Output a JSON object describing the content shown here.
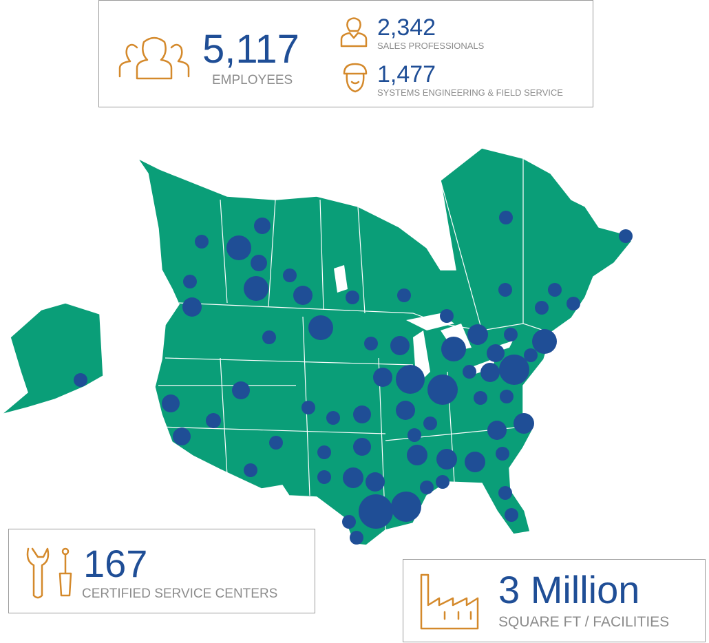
{
  "stats": {
    "employees": {
      "value": "5,117",
      "label": "EMPLOYEES"
    },
    "sales": {
      "value": "2,342",
      "label": "SALES PROFESSIONALS"
    },
    "engineering": {
      "value": "1,477",
      "label": "SYSTEMS ENGINEERING & FIELD SERVICE"
    },
    "service_centers": {
      "value": "167",
      "label": "CERTIFIED SERVICE CENTERS"
    },
    "facilities": {
      "value": "3 Million",
      "label": "SQUARE FT / FACILITIES"
    }
  }
}
